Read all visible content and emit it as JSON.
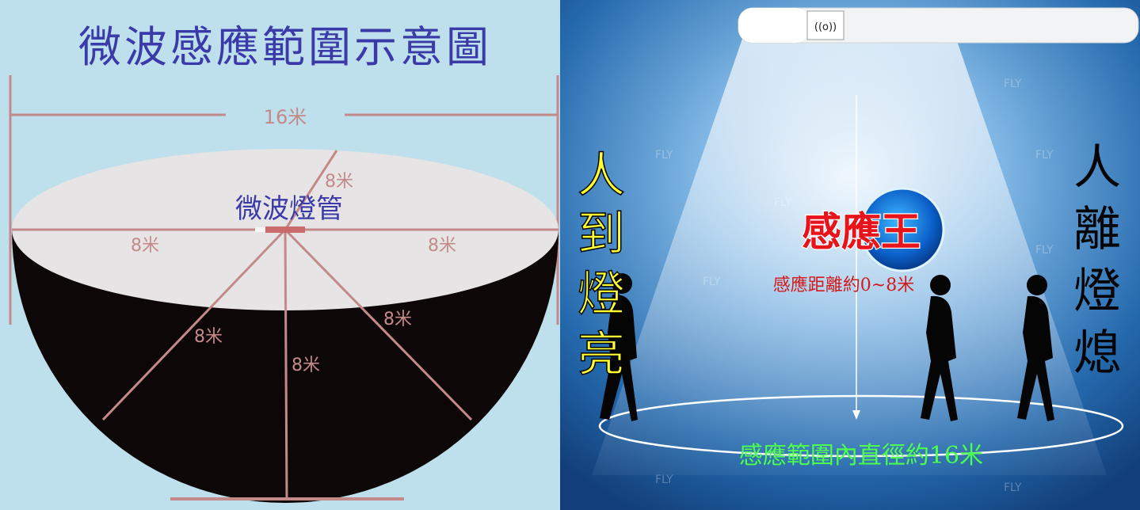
{
  "left_panel": {
    "title": "微波感應範圍示意圖",
    "diameter_label": "16米",
    "tube_label": "微波燈管",
    "radius_labels": [
      "8米",
      "8米",
      "8米",
      "8米",
      "8米",
      "8米"
    ]
  },
  "right_panel": {
    "left_caption": [
      "人",
      "到",
      "燈",
      "亮"
    ],
    "right_caption": [
      "人",
      "離",
      "燈",
      "熄"
    ],
    "brand_logo": "感應王",
    "distance_text": "感應距離約0~8米",
    "diameter_text": "感應範圍內直徑約16米",
    "sensor_icon": "((o))",
    "watermark": "FLY"
  },
  "colors": {
    "title_blue": "#3a3aa8",
    "radius_line": "#c48a8a",
    "caption_yellow": "#ffff33",
    "distance_red": "#d21a1a",
    "diameter_green": "#4cff4c",
    "logo_red": "#e8141b"
  }
}
